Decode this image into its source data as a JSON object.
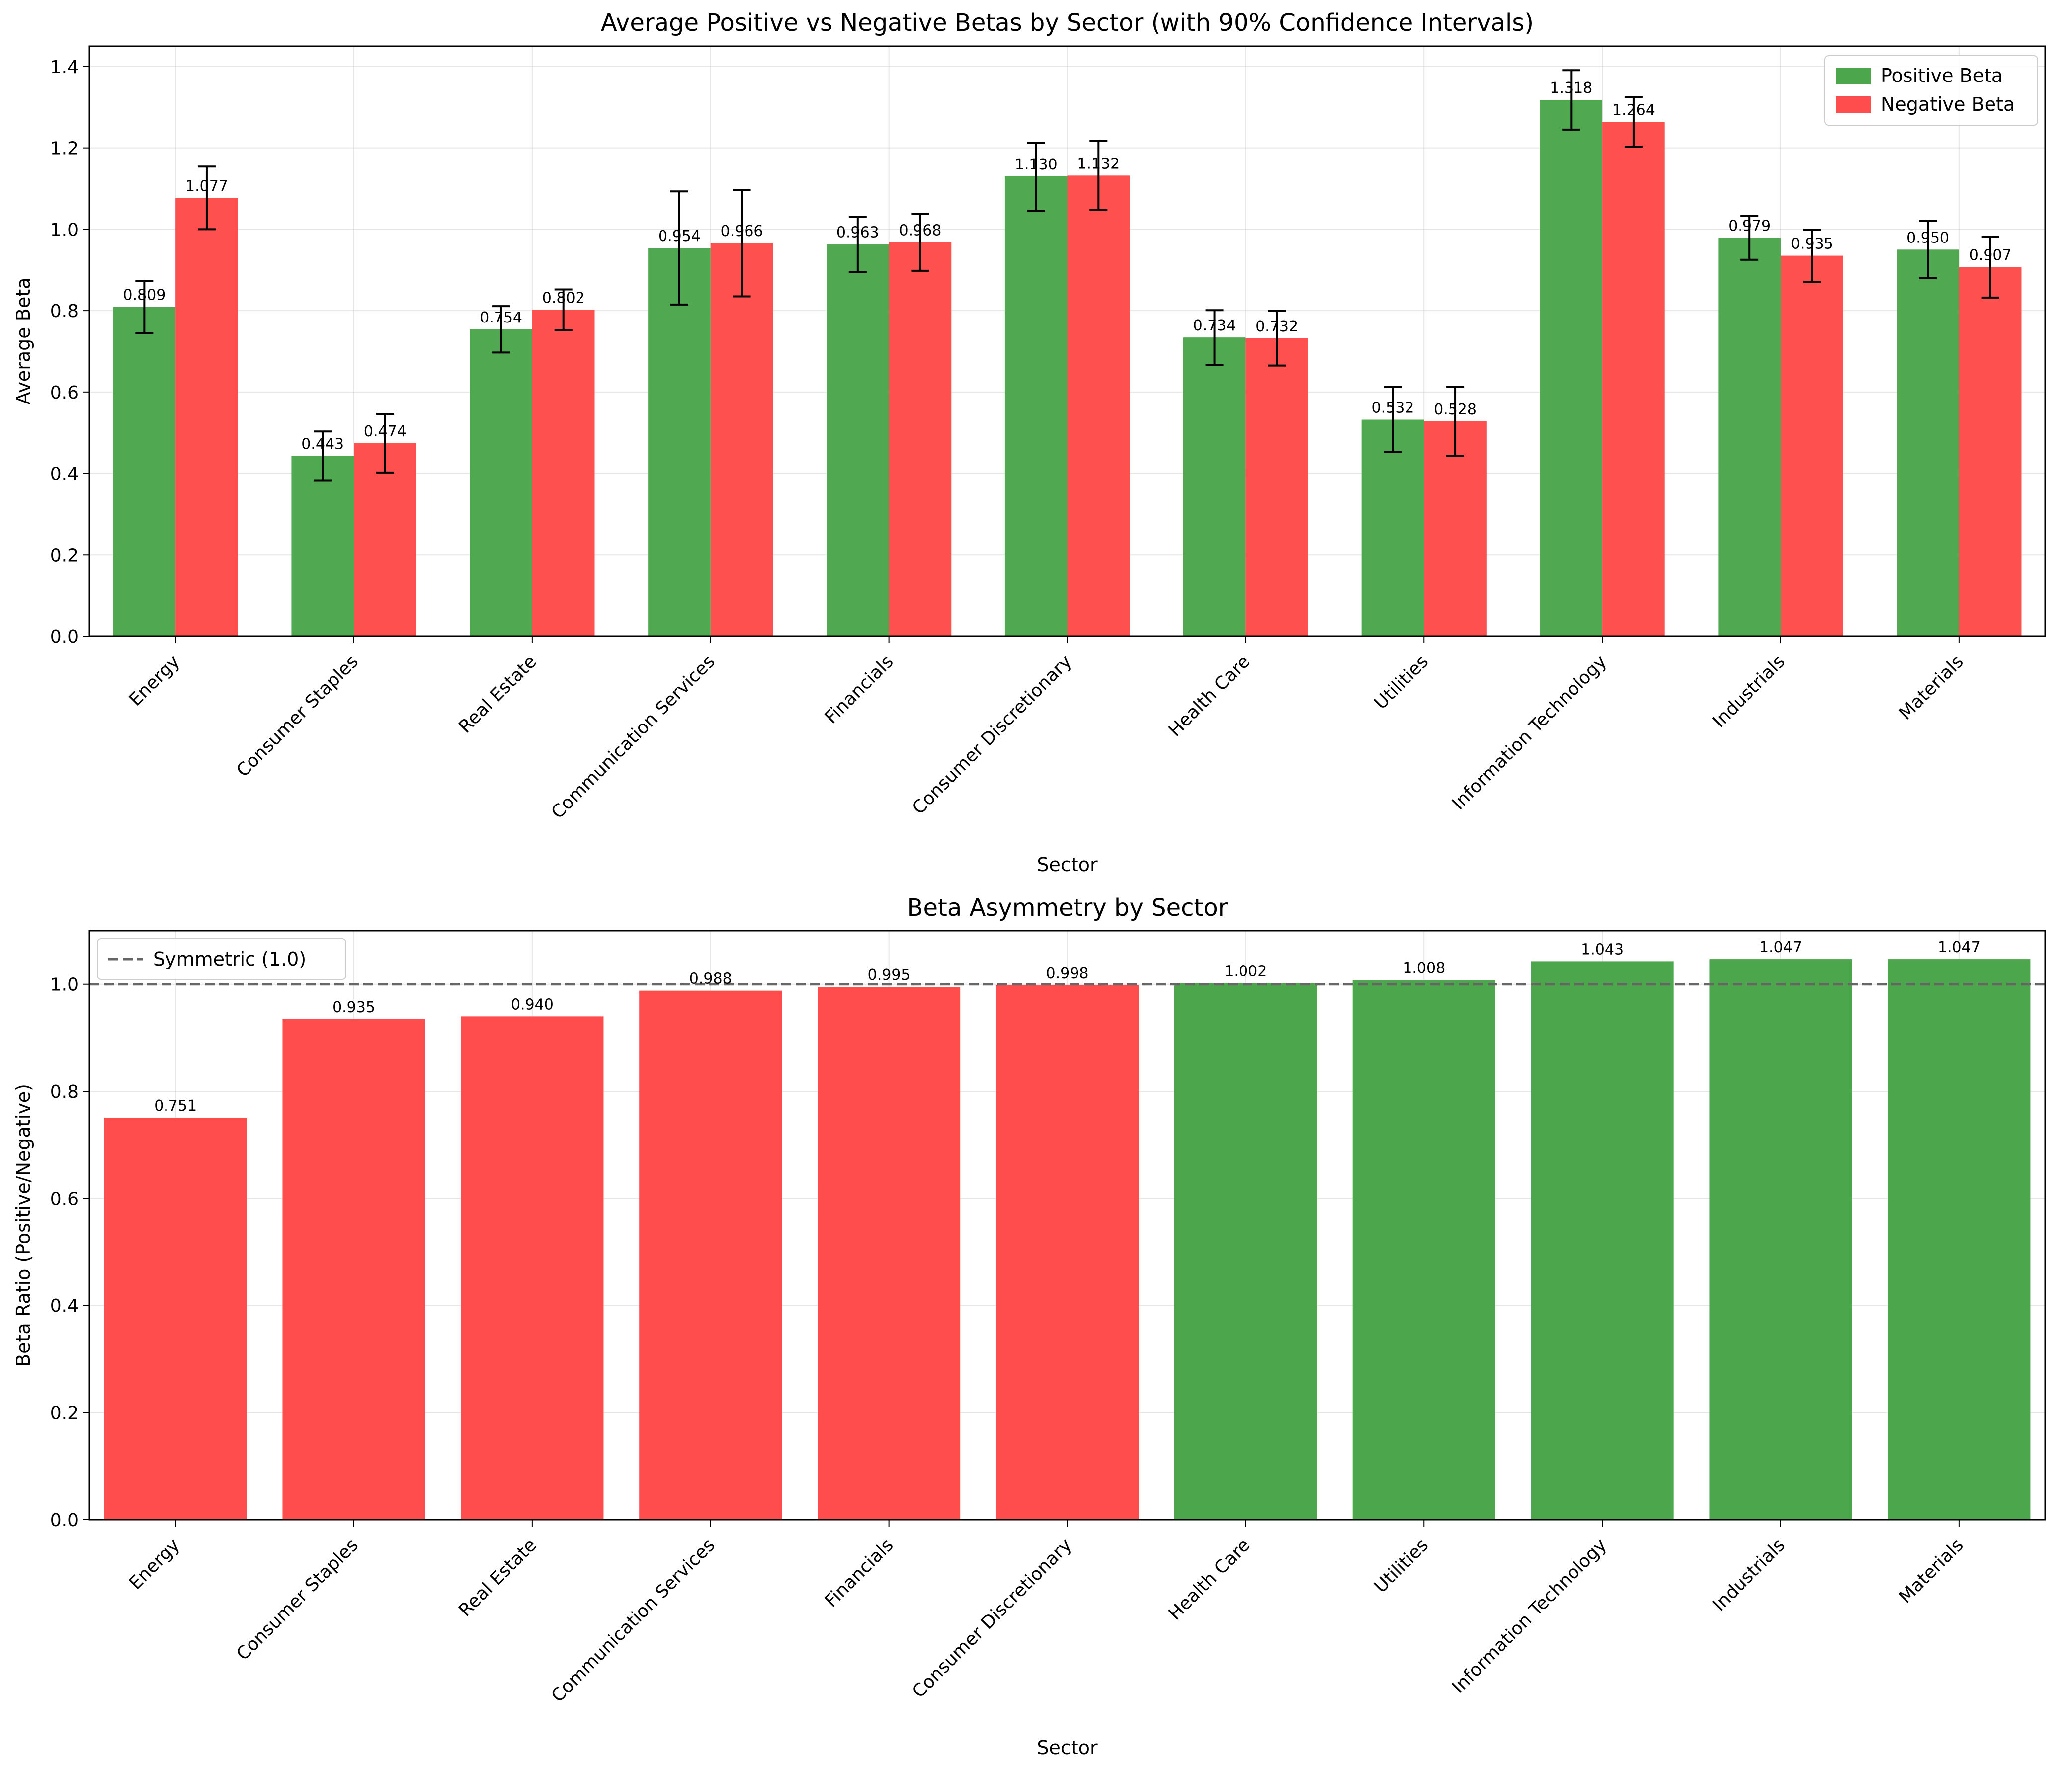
{
  "chart_data": [
    {
      "type": "bar",
      "title": "Average Positive vs Negative Betas by Sector (with 90% Confidence Intervals)",
      "xlabel": "Sector",
      "ylabel": "Average Beta",
      "ylim": [
        0,
        1.45
      ],
      "yticks": [
        0.0,
        0.2,
        0.4,
        0.6,
        0.8,
        1.0,
        1.2,
        1.4
      ],
      "grid": true,
      "legend_position": "top-right",
      "categories": [
        "Energy",
        "Consumer Staples",
        "Real Estate",
        "Communication Services",
        "Financials",
        "Consumer Discretionary",
        "Health Care",
        "Utilities",
        "Information Technology",
        "Industrials",
        "Materials"
      ],
      "series": [
        {
          "name": "Positive Beta",
          "color": "#4ca64c",
          "values": [
            0.809,
            0.443,
            0.754,
            0.954,
            0.963,
            1.13,
            0.734,
            0.532,
            1.318,
            0.979,
            0.95
          ],
          "ci_low": [
            0.745,
            0.383,
            0.697,
            0.815,
            0.895,
            1.045,
            0.667,
            0.452,
            1.245,
            0.925,
            0.88
          ],
          "ci_high": [
            0.873,
            0.503,
            0.811,
            1.093,
            1.031,
            1.213,
            0.801,
            0.612,
            1.391,
            1.033,
            1.02
          ],
          "labels": [
            "0.809",
            "0.443",
            "0.754",
            "0.954",
            "0.963",
            "1.130",
            "0.734",
            "0.532",
            "1.318",
            "0.979",
            "0.950"
          ]
        },
        {
          "name": "Negative Beta",
          "color": "#ff4c4c",
          "values": [
            1.077,
            0.474,
            0.802,
            0.966,
            0.968,
            1.132,
            0.732,
            0.528,
            1.264,
            0.935,
            0.907
          ],
          "ci_low": [
            1.0,
            0.402,
            0.752,
            0.835,
            0.898,
            1.047,
            0.665,
            0.443,
            1.203,
            0.871,
            0.832
          ],
          "ci_high": [
            1.154,
            0.546,
            0.852,
            1.097,
            1.038,
            1.217,
            0.799,
            0.613,
            1.325,
            0.999,
            0.982
          ],
          "labels": [
            "1.077",
            "0.474",
            "0.802",
            "0.966",
            "0.968",
            "1.132",
            "0.732",
            "0.528",
            "1.264",
            "0.935",
            "0.907"
          ]
        }
      ]
    },
    {
      "type": "bar",
      "title": "Beta Asymmetry by Sector",
      "xlabel": "Sector",
      "ylabel": "Beta Ratio (Positive/Negative)",
      "ylim": [
        0,
        1.1
      ],
      "yticks": [
        0.0,
        0.2,
        0.4,
        0.6,
        0.8,
        1.0
      ],
      "grid": true,
      "legend_position": "top-left",
      "reference_line": {
        "value": 1.0,
        "label": "Symmetric (1.0)",
        "color": "#666666"
      },
      "categories": [
        "Energy",
        "Consumer Staples",
        "Real Estate",
        "Communication Services",
        "Financials",
        "Consumer Discretionary",
        "Health Care",
        "Utilities",
        "Information Technology",
        "Industrials",
        "Materials"
      ],
      "values": [
        0.751,
        0.935,
        0.94,
        0.988,
        0.995,
        0.998,
        1.002,
        1.008,
        1.043,
        1.047,
        1.047
      ],
      "labels": [
        "0.751",
        "0.935",
        "0.940",
        "0.988",
        "0.995",
        "0.998",
        "1.002",
        "1.008",
        "1.043",
        "1.047",
        "1.047"
      ],
      "colors": {
        "below": "#ff4c4c",
        "above": "#4ca64c"
      }
    }
  ]
}
